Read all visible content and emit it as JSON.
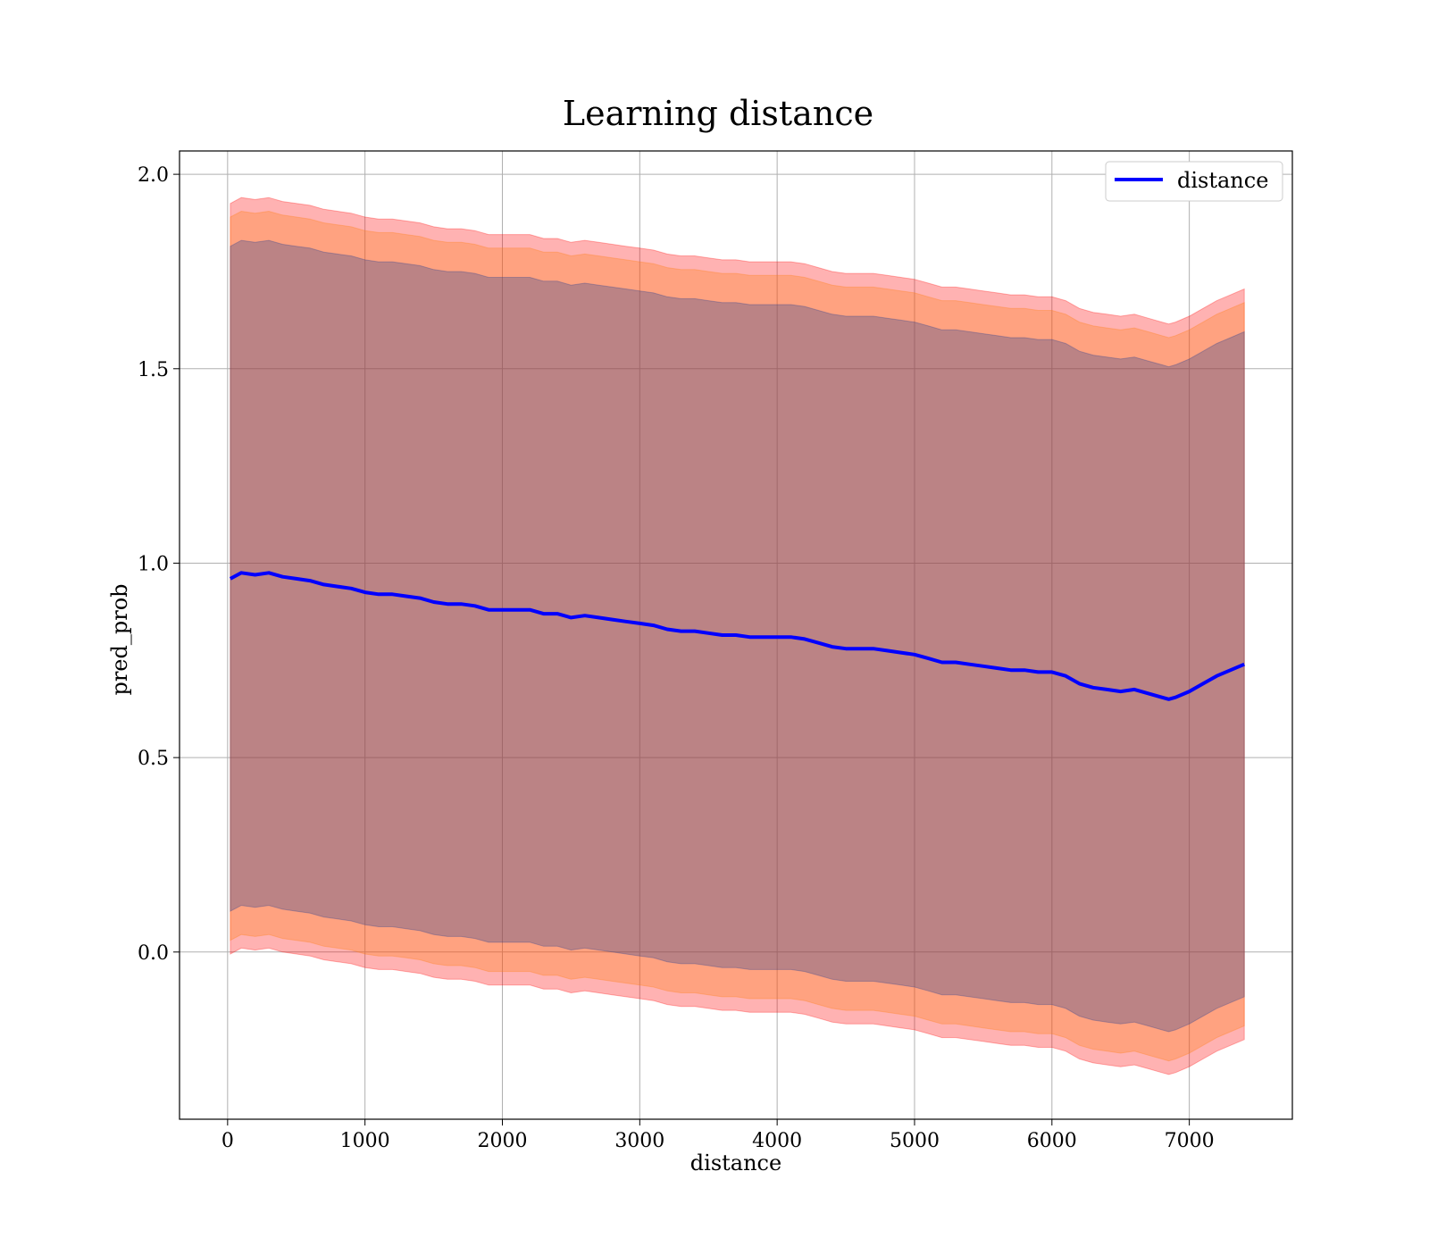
{
  "chart_data": {
    "type": "line",
    "title": "Learning distance",
    "xlabel": "distance",
    "ylabel": "pred_prob",
    "xlim": [
      -350,
      7750
    ],
    "ylim": [
      -0.43,
      2.06
    ],
    "xticks": [
      0,
      1000,
      2000,
      3000,
      4000,
      5000,
      6000,
      7000
    ],
    "yticks": [
      0.0,
      0.5,
      1.0,
      1.5,
      2.0
    ],
    "xtick_labels": [
      "0",
      "1000",
      "2000",
      "3000",
      "4000",
      "5000",
      "6000",
      "7000"
    ],
    "ytick_labels": [
      "0.0",
      "0.5",
      "1.0",
      "1.5",
      "2.0"
    ],
    "grid": true,
    "legend": {
      "position": "top-right",
      "entries": [
        "distance"
      ]
    },
    "colors": {
      "line": "#0000ff",
      "band_outer": "#ff0000",
      "band_middle": "#ff7f0e",
      "band_inner": "#1f3a93",
      "grid": "#b0b0b0"
    },
    "x": [
      20,
      100,
      200,
      300,
      400,
      500,
      600,
      700,
      800,
      900,
      1000,
      1100,
      1200,
      1300,
      1400,
      1500,
      1600,
      1700,
      1800,
      1900,
      2000,
      2100,
      2200,
      2300,
      2400,
      2500,
      2600,
      2700,
      2800,
      2900,
      3000,
      3100,
      3200,
      3300,
      3400,
      3500,
      3600,
      3700,
      3800,
      3900,
      4000,
      4100,
      4200,
      4300,
      4400,
      4500,
      4600,
      4700,
      4800,
      4900,
      5000,
      5100,
      5200,
      5300,
      5400,
      5500,
      5600,
      5700,
      5800,
      5900,
      6000,
      6100,
      6200,
      6300,
      6400,
      6500,
      6600,
      6700,
      6800,
      6850,
      6900,
      7000,
      7100,
      7200,
      7300,
      7400
    ],
    "series": [
      {
        "name": "distance",
        "values": [
          0.96,
          0.975,
          0.97,
          0.975,
          0.965,
          0.96,
          0.955,
          0.945,
          0.94,
          0.935,
          0.925,
          0.92,
          0.92,
          0.915,
          0.91,
          0.9,
          0.895,
          0.895,
          0.89,
          0.88,
          0.88,
          0.88,
          0.88,
          0.87,
          0.87,
          0.86,
          0.865,
          0.86,
          0.855,
          0.85,
          0.845,
          0.84,
          0.83,
          0.825,
          0.825,
          0.82,
          0.815,
          0.815,
          0.81,
          0.81,
          0.81,
          0.81,
          0.805,
          0.795,
          0.785,
          0.78,
          0.78,
          0.78,
          0.775,
          0.77,
          0.765,
          0.755,
          0.745,
          0.745,
          0.74,
          0.735,
          0.73,
          0.725,
          0.725,
          0.72,
          0.72,
          0.71,
          0.69,
          0.68,
          0.675,
          0.67,
          0.675,
          0.665,
          0.655,
          0.65,
          0.655,
          0.67,
          0.69,
          0.71,
          0.725,
          0.74
        ]
      }
    ],
    "bands": [
      {
        "name": "outer",
        "offset": 0.965
      },
      {
        "name": "middle",
        "offset": 0.93
      },
      {
        "name": "inner",
        "offset": 0.855
      }
    ]
  }
}
